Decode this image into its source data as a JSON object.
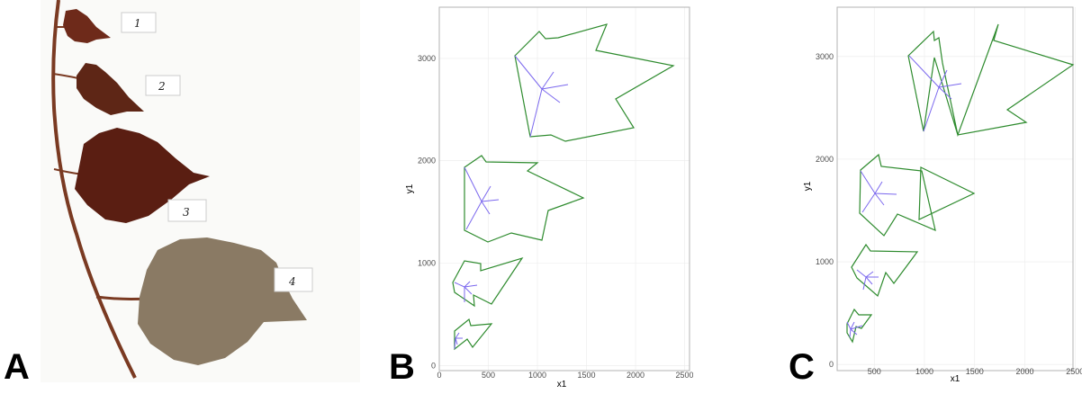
{
  "panels": {
    "a": {
      "letter": "A"
    },
    "b": {
      "letter": "B"
    },
    "c": {
      "letter": "C"
    }
  },
  "leaf_labels": [
    "1",
    "2",
    "3",
    "4"
  ],
  "colors": {
    "outline": "#2e8b2e",
    "veins": "#7b68ee",
    "grid": "#ebebeb",
    "panel_border": "#b3b3b3",
    "leaf_dark": "#6b2416",
    "leaf_light": "#8a7a64"
  },
  "chart_data": [
    {
      "type": "scatter",
      "panel": "B",
      "xlabel": "x1",
      "ylabel": "y1",
      "xlim": [
        0,
        2550
      ],
      "ylim": [
        -50,
        3500
      ],
      "x_ticks": [
        0,
        500,
        1000,
        1500,
        2000,
        2500
      ],
      "y_ticks": [
        0,
        1000,
        2000,
        3000
      ],
      "grid": true
    },
    {
      "type": "scatter",
      "panel": "C",
      "xlabel": "x1",
      "ylabel": "y1",
      "xlim": [
        130,
        2480
      ],
      "ylim": [
        -60,
        3480
      ],
      "x_ticks": [
        500,
        1000,
        1500,
        2000,
        2500
      ],
      "y_ticks": [
        0,
        1000,
        2000,
        3000
      ],
      "grid": true
    }
  ]
}
